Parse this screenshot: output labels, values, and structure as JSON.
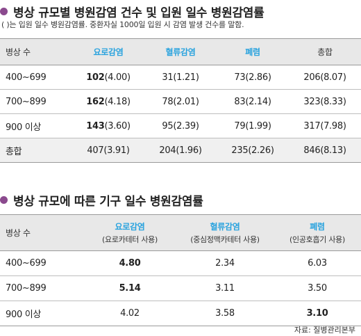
{
  "section1": {
    "title": "병상 규모별 병원감염 건수 및 입원 일수 병원감염률",
    "note": "( )는 입원 일수 병원감염률. 중환자실 1000일 입원 시 감염 발생 건수를 말함.",
    "headers": [
      "병상 수",
      "요로감염",
      "혈류감염",
      "폐렴",
      "총합"
    ],
    "rows": [
      {
        "label": "400~699",
        "cells": [
          [
            "102",
            "(4.00)"
          ],
          [
            "31",
            "(1.21)"
          ],
          [
            "73",
            "(2.86)"
          ],
          [
            "206",
            "(8.07)"
          ]
        ]
      },
      {
        "label": "700~899",
        "cells": [
          [
            "162",
            "(4.18)"
          ],
          [
            "78",
            "(2.01)"
          ],
          [
            "83",
            "(2.14)"
          ],
          [
            "323",
            "(8.33)"
          ]
        ]
      },
      {
        "label": "900 이상",
        "cells": [
          [
            "143",
            "(3.60)"
          ],
          [
            "95",
            "(2.39)"
          ],
          [
            "79",
            "(1.99)"
          ],
          [
            "317",
            "(7.98)"
          ]
        ]
      },
      {
        "label": "총합",
        "cells": [
          [
            "407",
            "(3.91)"
          ],
          [
            "204",
            "(1.96)"
          ],
          [
            "235",
            "(2.26)"
          ],
          [
            "846",
            "(8.13)"
          ]
        ]
      }
    ]
  },
  "section2": {
    "title": "병상 규모에 따른 기구 일수 병원감염률",
    "headers": [
      {
        "main": "병상 수",
        "sub": ""
      },
      {
        "main": "요로감염",
        "sub": "(요로카테터 사용)"
      },
      {
        "main": "혈류감염",
        "sub": "(중심정맥카테터 사용)"
      },
      {
        "main": "폐렴",
        "sub": "(인공호흡기 사용)"
      }
    ],
    "rows": [
      {
        "label": "400~699",
        "values": [
          "4.80",
          "2.34",
          "6.03"
        ]
      },
      {
        "label": "700~899",
        "values": [
          "5.14",
          "3.11",
          "3.50"
        ]
      },
      {
        "label": "900 이상",
        "values": [
          "4.02",
          "3.58",
          "3.10"
        ]
      }
    ]
  },
  "source": "자료: 질병관리본부",
  "colors": {
    "accent_blue": "#2aa3de",
    "bullet_purple": "#8b4a8e",
    "header_gray": "#e8e8e8"
  }
}
